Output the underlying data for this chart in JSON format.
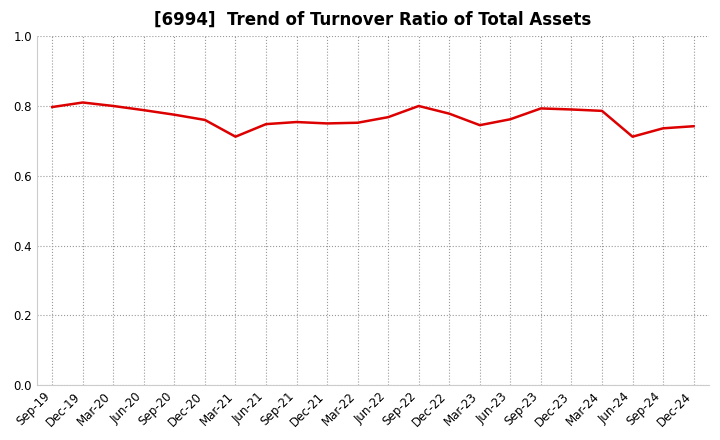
{
  "title": "[6994]  Trend of Turnover Ratio of Total Assets",
  "labels": [
    "Sep-19",
    "Dec-19",
    "Mar-20",
    "Jun-20",
    "Sep-20",
    "Dec-20",
    "Mar-21",
    "Jun-21",
    "Sep-21",
    "Dec-21",
    "Mar-22",
    "Jun-22",
    "Sep-22",
    "Dec-22",
    "Mar-23",
    "Jun-23",
    "Sep-23",
    "Dec-23",
    "Mar-24",
    "Jun-24",
    "Sep-24",
    "Dec-24"
  ],
  "values": [
    0.797,
    0.81,
    0.8,
    0.788,
    0.775,
    0.76,
    0.712,
    0.748,
    0.754,
    0.75,
    0.752,
    0.768,
    0.8,
    0.778,
    0.745,
    0.762,
    0.793,
    0.79,
    0.786,
    0.712,
    0.736,
    0.742
  ],
  "line_color": "#dd0000",
  "ylim": [
    0.0,
    1.0
  ],
  "yticks": [
    0.0,
    0.2,
    0.4,
    0.6,
    0.8,
    1.0
  ],
  "grid_color": "#999999",
  "bg_color": "#ffffff",
  "title_fontsize": 12,
  "tick_fontsize": 8.5,
  "line_width": 1.8
}
